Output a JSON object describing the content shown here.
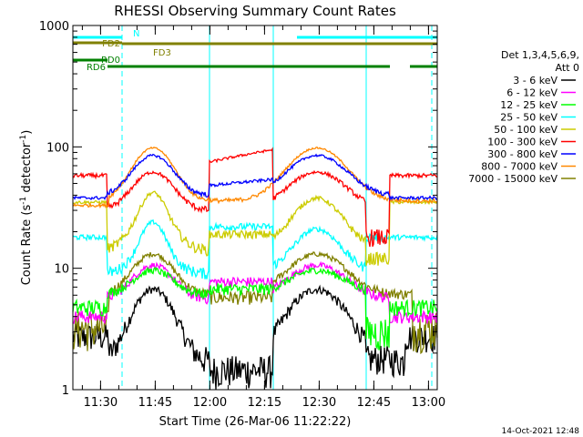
{
  "chart_data": {
    "type": "line",
    "title": "RHESSI Observing Summary Count Rates",
    "xlabel": "Start Time (26-Mar-06 11:22:22)",
    "ylabel_main": "Count Rate (s",
    "ylabel_sup1": "-1",
    "ylabel_mid": " detector",
    "ylabel_sup2": "-1",
    "ylabel_end": ")",
    "yscale": "log",
    "ylim": [
      1,
      1000
    ],
    "xlim_minutes": [
      0,
      100
    ],
    "x_ticks": [
      {
        "label": "11:30",
        "minute": 7.6
      },
      {
        "label": "11:45",
        "minute": 22.6
      },
      {
        "label": "12:00",
        "minute": 37.6
      },
      {
        "label": "12:15",
        "minute": 52.6
      },
      {
        "label": "12:30",
        "minute": 67.6
      },
      {
        "label": "12:45",
        "minute": 82.6
      },
      {
        "label": "13:00",
        "minute": 97.6
      }
    ],
    "y_ticks": [
      {
        "label": "1",
        "value": 1
      },
      {
        "label": "10",
        "value": 10
      },
      {
        "label": "100",
        "value": 100
      },
      {
        "label": "1000",
        "value": 1000
      }
    ],
    "legend": {
      "header1": "Det 1,3,4,5,6,9,",
      "header2": "Att 0",
      "placement": "right"
    },
    "series": [
      {
        "name": "3 - 6 keV",
        "color": "#000000"
      },
      {
        "name": "6 - 12 keV",
        "color": "#ff00ff"
      },
      {
        "name": "12 - 25 keV",
        "color": "#00ff00"
      },
      {
        "name": "25 - 50 keV",
        "color": "#00ffff"
      },
      {
        "name": "50 - 100 keV",
        "color": "#cccc00"
      },
      {
        "name": "100 - 300 keV",
        "color": "#ff0000"
      },
      {
        "name": "300 - 800 keV",
        "color": "#0000ff"
      },
      {
        "name": "800 - 7000 keV",
        "color": "#ff8800"
      },
      {
        "name": "7000 - 15000 keV",
        "color": "#808000"
      }
    ],
    "flag_bars": [
      {
        "label": "N",
        "color": "#00ffff",
        "segments": [
          [
            0,
            13.5
          ],
          [
            61.5,
            100
          ]
        ]
      },
      {
        "label": "FD2",
        "color": "#808000",
        "segments": [
          [
            0,
            13.5
          ]
        ]
      },
      {
        "label": "FD3",
        "color": "#808000",
        "segments": [
          [
            13.5,
            100
          ]
        ]
      },
      {
        "label": "RD0",
        "color": "#008000",
        "segments": [
          [
            0,
            9.5
          ]
        ]
      },
      {
        "label": "RD6",
        "color": "#008000",
        "segments": [
          [
            9.5,
            37.5
          ],
          [
            37.5,
            55
          ],
          [
            55,
            87
          ],
          [
            92.5,
            100
          ]
        ]
      }
    ],
    "vlines": [
      {
        "minute": 0,
        "color": "#00ffff",
        "style": "solid"
      },
      {
        "minute": 13.5,
        "color": "#00ffff",
        "style": "dash"
      },
      {
        "minute": 37.5,
        "color": "#00ffff",
        "style": "solid"
      },
      {
        "minute": 55,
        "color": "#00ffff",
        "style": "solid"
      },
      {
        "minute": 80.5,
        "color": "#00ffff",
        "style": "solid"
      },
      {
        "minute": 98.5,
        "color": "#00ffff",
        "style": "dash"
      }
    ],
    "footer": "14-Oct-2021 12:48"
  }
}
